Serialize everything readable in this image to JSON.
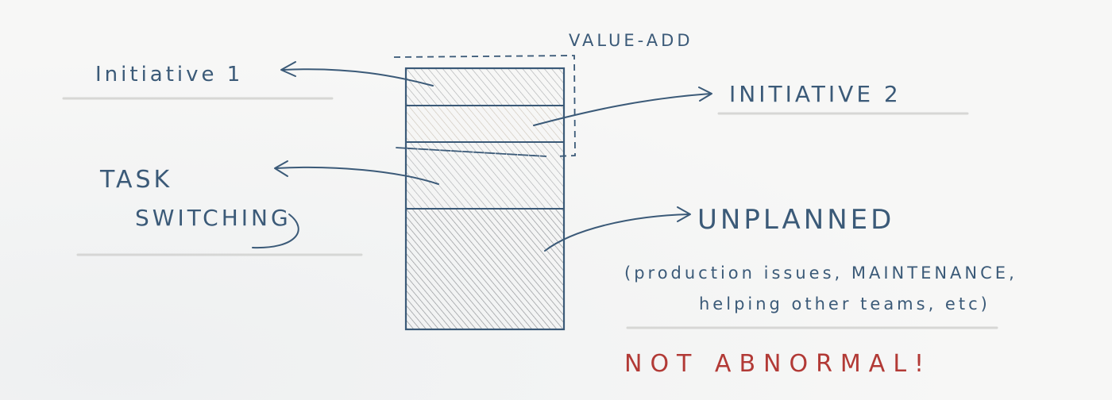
{
  "colors": {
    "ink": "#3b5a78",
    "red": "#b23a36",
    "pencil": "#d4d4d2",
    "hatch": "#8c8f93"
  },
  "labels": {
    "value_add": "VALUE-ADD",
    "initiative_1": "Initiative 1",
    "initiative_2": "INITIATIVE 2",
    "task": "TASK",
    "switching": "SWITCHING",
    "unplanned": "UNPLANNED",
    "note_line1": "(production issues, MAINTENANCE,",
    "note_line2": "helping other teams, etc)",
    "not_abnormal": "NOT ABNORMAL!"
  }
}
